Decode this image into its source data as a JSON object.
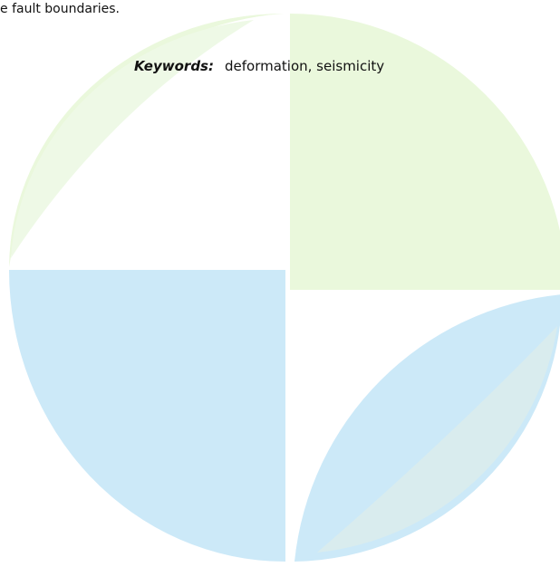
{
  "body_text": "e fault boundaries.",
  "keywords": {
    "label": "Keywords:",
    "text": "deformation, seismicity"
  }
}
